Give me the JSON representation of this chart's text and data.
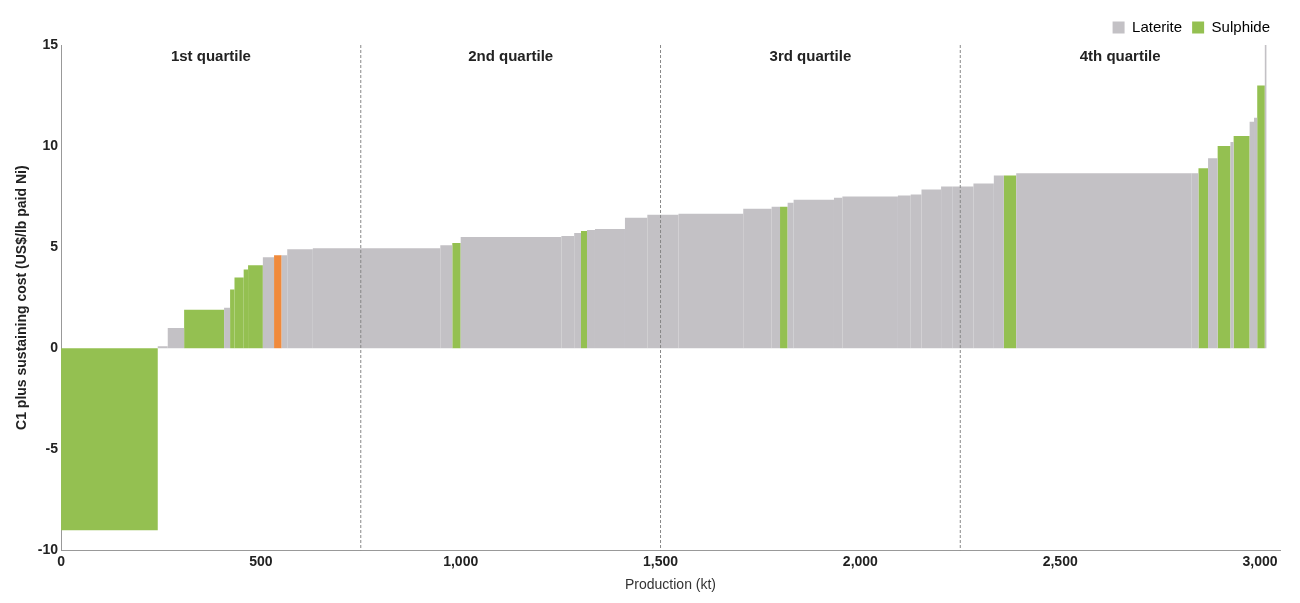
{
  "chart_data": {
    "type": "histogram",
    "xlabel": "Production (kt)",
    "ylabel": "C1 plus sustaining cost (US$/lb paid Ni)",
    "bins": [
      0,
      242,
      267,
      308,
      408,
      423,
      434,
      457,
      468,
      505,
      533,
      552,
      566,
      630,
      949,
      979,
      1000,
      1252,
      1284,
      1301,
      1316,
      1336,
      1411,
      1467,
      1545,
      1707,
      1778,
      1799,
      1818,
      1833,
      1934,
      1955,
      2094,
      2126,
      2153,
      2202,
      2230,
      2283,
      2334,
      2359,
      2390,
      2828,
      2846,
      2870,
      2894,
      2926,
      2934,
      2974,
      2985,
      2993,
      3012,
      3016
    ],
    "series": [
      {
        "name": "Laterite",
        "color": "#c3c1c5",
        "values": [
          null,
          0.1,
          1.0,
          null,
          2.0,
          null,
          null,
          null,
          null,
          4.5,
          null,
          4.6,
          4.9,
          4.95,
          5.1,
          null,
          5.5,
          5.55,
          5.7,
          null,
          5.85,
          5.9,
          6.45,
          6.6,
          6.65,
          6.9,
          7.0,
          null,
          7.2,
          7.35,
          7.45,
          7.5,
          7.55,
          7.6,
          7.85,
          8.0,
          8.0,
          8.15,
          8.55,
          null,
          8.65,
          8.65,
          null,
          9.4,
          null,
          10.2,
          null,
          11.2,
          11.4,
          null,
          15.0
        ]
      },
      {
        "name": "Sulphide",
        "color": "#94c051",
        "values": [
          -9,
          null,
          null,
          1.9,
          null,
          2.9,
          3.5,
          3.9,
          4.1,
          null,
          null,
          null,
          null,
          null,
          null,
          5.2,
          null,
          null,
          null,
          5.8,
          null,
          null,
          null,
          null,
          null,
          null,
          null,
          7.0,
          null,
          null,
          null,
          null,
          null,
          null,
          null,
          null,
          null,
          null,
          null,
          8.55,
          null,
          null,
          8.9,
          null,
          10.0,
          null,
          10.5,
          null,
          null,
          13.0,
          null
        ]
      },
      {
        "color": "#f08a3c",
        "values": [
          null,
          null,
          null,
          null,
          null,
          null,
          null,
          null,
          null,
          null,
          4.6,
          null,
          null,
          null,
          null,
          null,
          null,
          null,
          null,
          null,
          null,
          null,
          null,
          null,
          null,
          null,
          null,
          null,
          null,
          null,
          null,
          null,
          null,
          null,
          null,
          null,
          null,
          null,
          null,
          null,
          null,
          null,
          null,
          null,
          null,
          null,
          null,
          null,
          null,
          null,
          null
        ]
      }
    ],
    "xlim": [
      0,
      3050
    ],
    "xticks": [
      0,
      500,
      {
        "value": 1000,
        "label": "1,000"
      },
      {
        "value": 1500,
        "label": "1,500"
      },
      {
        "value": 2000,
        "label": "2,000"
      },
      {
        "value": 2500,
        "label": "2,500"
      },
      {
        "value": 3000,
        "label": "3,000"
      }
    ],
    "ylim": [
      -10,
      15
    ],
    "yticks": [
      -10,
      -5,
      0,
      5,
      10,
      15
    ],
    "ref_lines": [
      {
        "axis": "x",
        "value": 750,
        "line_style": "dashed",
        "color": "#888888"
      },
      {
        "axis": "x",
        "value": 1500,
        "line_style": "dashed",
        "color": "#888888"
      },
      {
        "axis": "x",
        "value": 2250,
        "line_style": "dashed",
        "color": "#888888"
      }
    ],
    "annotations": [
      "1st quartile",
      "2nd quartile",
      "3rd quartile",
      "4th quartile"
    ],
    "legend": "top right",
    "grid": false
  }
}
